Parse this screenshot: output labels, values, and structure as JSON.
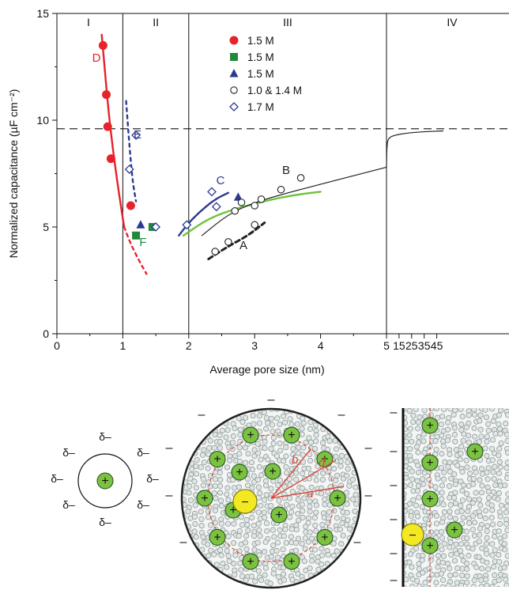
{
  "chart_data": {
    "type": "scatter",
    "xlabel": "Average pore size (nm)",
    "ylabel": "Normalized capacitance (µF cm⁻²)",
    "ylim": [
      0,
      15
    ],
    "x_ticks": [
      "0",
      "1",
      "2",
      "3",
      "4",
      "5",
      "15",
      "25",
      "35",
      "45"
    ],
    "y_ticks": [
      "0",
      "5",
      "10",
      "15"
    ],
    "grid": false,
    "legend_position": "top-center",
    "reference_line": {
      "y": 9.6,
      "style": "dashed"
    },
    "regions": [
      {
        "label": "I",
        "x_range": [
          0,
          1
        ]
      },
      {
        "label": "II",
        "x_range": [
          1,
          2
        ]
      },
      {
        "label": "III",
        "x_range": [
          2,
          5
        ]
      },
      {
        "label": "IV",
        "x_range": [
          5,
          50
        ]
      }
    ],
    "legend": [
      {
        "label": "1.5 M",
        "marker": "circle-filled",
        "color": "#e8222a"
      },
      {
        "label": "1.5 M",
        "marker": "square-filled",
        "color": "#1f8a3a"
      },
      {
        "label": "1.5 M",
        "marker": "triangle-filled",
        "color": "#2b3a8f"
      },
      {
        "label": "1.0 & 1.4 M",
        "marker": "circle-open",
        "color": "#222222"
      },
      {
        "label": "1.7 M",
        "marker": "diamond-open",
        "color": "#2b3a8f"
      }
    ],
    "series": [
      {
        "label": "D",
        "marker": "circle-filled",
        "color": "#e8222a",
        "points": [
          [
            0.7,
            13.5
          ],
          [
            0.75,
            11.2
          ],
          [
            0.77,
            9.7
          ],
          [
            0.82,
            8.2
          ],
          [
            1.12,
            6.0
          ]
        ]
      },
      {
        "label": "F",
        "marker": "square-filled",
        "color": "#1f8a3a",
        "points": [
          [
            1.2,
            4.6
          ],
          [
            1.45,
            5.0
          ]
        ]
      },
      {
        "label": "",
        "marker": "triangle-filled",
        "color": "#2b3a8f",
        "points": [
          [
            1.27,
            5.1
          ],
          [
            2.75,
            6.4
          ]
        ]
      },
      {
        "label": "E",
        "marker": "diamond-open",
        "color": "#2b3a8f",
        "points": [
          [
            1.1,
            7.7
          ],
          [
            1.2,
            9.3
          ],
          [
            1.5,
            5.0
          ],
          [
            1.97,
            5.1
          ],
          [
            2.35,
            6.65
          ],
          [
            2.42,
            5.95
          ]
        ]
      },
      {
        "label": "A",
        "marker": "circle-open",
        "color": "#222222",
        "points": [
          [
            2.4,
            3.85
          ],
          [
            2.6,
            4.3
          ],
          [
            3.0,
            5.1
          ]
        ]
      },
      {
        "label": "B",
        "marker": "circle-open",
        "color": "#222222",
        "points": [
          [
            2.7,
            5.75
          ],
          [
            2.8,
            6.15
          ],
          [
            3.0,
            6.0
          ],
          [
            3.1,
            6.3
          ],
          [
            3.4,
            6.75
          ],
          [
            3.7,
            7.3
          ]
        ]
      }
    ],
    "fit_curves": [
      {
        "label": "D",
        "style": "solid",
        "color": "#e8222a",
        "points": [
          [
            0.68,
            14.0
          ],
          [
            0.72,
            12.6
          ],
          [
            0.78,
            10.5
          ],
          [
            0.85,
            8.6
          ],
          [
            0.94,
            6.6
          ],
          [
            1.02,
            5.0
          ]
        ]
      },
      {
        "label": "",
        "style": "dotted",
        "color": "#e8222a",
        "points": [
          [
            1.02,
            5.0
          ],
          [
            1.12,
            4.2
          ],
          [
            1.25,
            3.4
          ],
          [
            1.36,
            2.8
          ]
        ]
      },
      {
        "label": "E",
        "style": "dotted",
        "color": "#2b3a8f",
        "points": [
          [
            1.05,
            10.9
          ],
          [
            1.1,
            8.8
          ],
          [
            1.15,
            7.1
          ],
          [
            1.2,
            6.2
          ]
        ]
      },
      {
        "label": "C",
        "style": "solid",
        "color": "#2b3a8f",
        "points": [
          [
            1.85,
            4.6
          ],
          [
            2.0,
            5.2
          ],
          [
            2.2,
            5.8
          ],
          [
            2.4,
            6.3
          ],
          [
            2.6,
            6.6
          ]
        ]
      },
      {
        "label": "",
        "style": "solid",
        "color": "#6cc33a",
        "points": [
          [
            1.92,
            4.6
          ],
          [
            2.3,
            5.4
          ],
          [
            2.7,
            5.85
          ],
          [
            3.2,
            6.25
          ],
          [
            3.6,
            6.5
          ],
          [
            4.0,
            6.65
          ]
        ]
      },
      {
        "label": "A",
        "style": "dashed",
        "color": "#222222",
        "points": [
          [
            2.3,
            3.5
          ],
          [
            2.6,
            4.1
          ],
          [
            2.9,
            4.6
          ],
          [
            3.15,
            5.2
          ]
        ]
      },
      {
        "label": "B",
        "style": "solid-thin",
        "color": "#222222",
        "points": [
          [
            2.2,
            4.6
          ],
          [
            2.6,
            5.6
          ],
          [
            3.0,
            6.15
          ],
          [
            3.5,
            6.6
          ],
          [
            4.0,
            7.0
          ],
          [
            4.5,
            7.4
          ],
          [
            5.0,
            7.8
          ]
        ]
      },
      {
        "label": "",
        "style": "solid-thin",
        "color": "#222222",
        "points": [
          [
            5.0,
            7.8
          ],
          [
            5.3,
            8.8
          ],
          [
            6.5,
            9.2
          ],
          [
            15,
            9.35
          ],
          [
            30,
            9.45
          ],
          [
            50,
            9.5
          ]
        ]
      }
    ]
  },
  "schematic": {
    "solvated_ion": {
      "charge": "+",
      "partial_charges": [
        "δ–",
        "δ–",
        "δ–",
        "δ–",
        "δ–",
        "δ–",
        "δ–",
        "δ–"
      ]
    },
    "pore": {
      "labels": [
        "a",
        "b",
        "d"
      ],
      "cation_charge": "+",
      "anion_charge": "−",
      "outer_charges": [
        "–",
        "–",
        "–",
        "–",
        "–",
        "–",
        "–",
        "–",
        "–",
        "–"
      ]
    },
    "slit": {
      "cation_charge": "+",
      "anion_charge": "−",
      "side_charges": [
        "–",
        "–",
        "–",
        "–",
        "–",
        "–"
      ]
    },
    "colors": {
      "cation": "#7cc242",
      "anion": "#f4e823",
      "pore_edge": "#222222",
      "pore_dash": "#d94a3b",
      "solvent": "#8f9a9a"
    }
  }
}
